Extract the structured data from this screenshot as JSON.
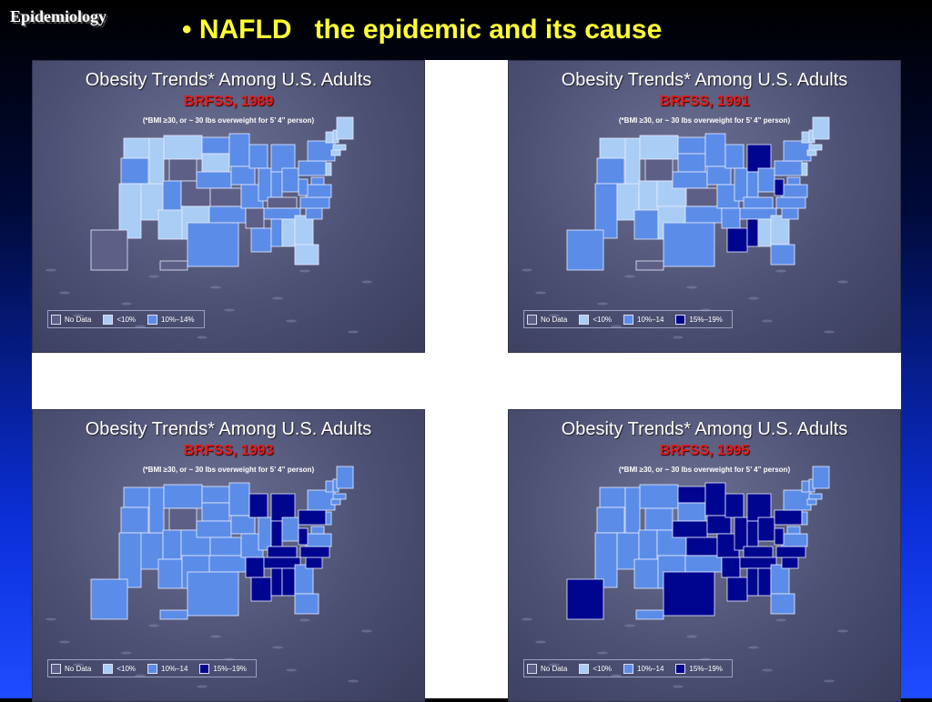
{
  "header": {
    "corner_label": "Epidemiology",
    "title": "• NAFLD   the epidemic and its cause"
  },
  "colors": {
    "no_data": "#5e5f86",
    "lt10": "#a9cdf5",
    "p10_14": "#5b8de8",
    "p15_19": "#00058f",
    "panel_bg": "#4c5072",
    "title_yellow": "#ffff33",
    "subtitle_red": "#e51c1c"
  },
  "panels": [
    {
      "title": "Obesity Trends* Among U.S. Adults",
      "subtitle": "BRFSS, 1989",
      "note": "(*BMI ≥30, or ~ 30 lbs overweight for 5’ 4” person)",
      "legend": [
        {
          "color": "#5e5f86",
          "label": "No Data"
        },
        {
          "color": "#a9cdf5",
          "label": "<10%"
        },
        {
          "color": "#5b8de8",
          "label": "10%–14%"
        }
      ]
    },
    {
      "title": "Obesity Trends* Among U.S. Adults",
      "subtitle": "BRFSS, 1991",
      "note": "(*BMI ≥30, or ~ 30 lbs overweight for 5’ 4” person)",
      "legend": [
        {
          "color": "#5e5f86",
          "label": "No Data"
        },
        {
          "color": "#a9cdf5",
          "label": "<10%"
        },
        {
          "color": "#5b8de8",
          "label": "10%–14"
        },
        {
          "color": "#00058f",
          "label": "15%–19%"
        }
      ]
    },
    {
      "title": "Obesity Trends* Among U.S. Adults",
      "subtitle": "BRFSS, 1993",
      "note": "(*BMI ≥30, or ~ 30 lbs overweight for 5’ 4” person)",
      "legend": [
        {
          "color": "#5e5f86",
          "label": "No Data"
        },
        {
          "color": "#a9cdf5",
          "label": "<10%"
        },
        {
          "color": "#5b8de8",
          "label": "10%–14"
        },
        {
          "color": "#00058f",
          "label": "15%–19%"
        }
      ]
    },
    {
      "title": "Obesity Trends* Among U.S. Adults",
      "subtitle": "BRFSS, 1995",
      "note": "(*BMI ≥30, or ~ 30 lbs overweight for 5’ 4” person)",
      "legend": [
        {
          "color": "#5e5f86",
          "label": "No Data"
        },
        {
          "color": "#a9cdf5",
          "label": "<10%"
        },
        {
          "color": "#5b8de8",
          "label": "10%–14"
        },
        {
          "color": "#00058f",
          "label": "15%–19%"
        }
      ]
    }
  ]
}
